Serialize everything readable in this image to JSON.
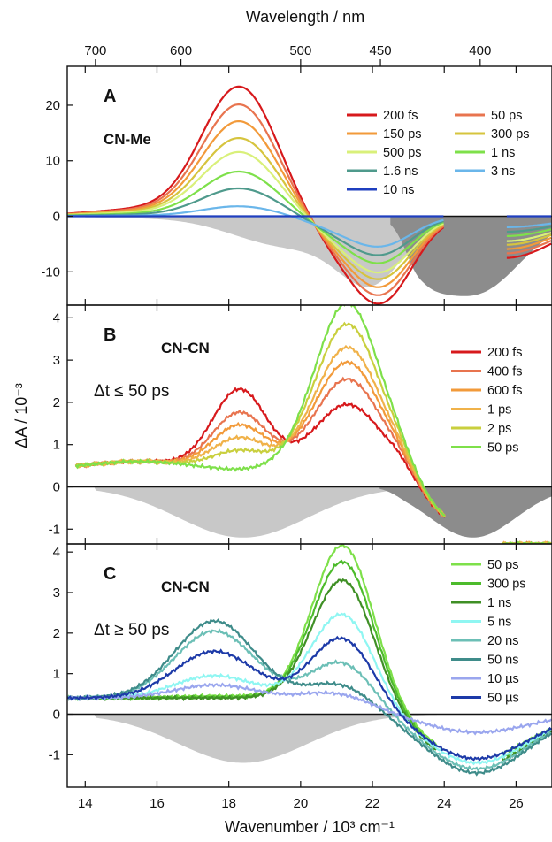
{
  "top_axis": {
    "title": "Wavelength / nm",
    "ticks": [
      700,
      600,
      500,
      450,
      400
    ]
  },
  "x_axis": {
    "title": "Wavenumber / 10³ cm⁻¹",
    "range": [
      13.5,
      27
    ],
    "ticks": [
      14,
      16,
      18,
      20,
      22,
      24,
      26
    ]
  },
  "y_axis_title": "ΔA / 10⁻³",
  "chart_data": [
    {
      "type": "line",
      "panel": "A",
      "label": "CN-Me",
      "ylim": [
        -16,
        27
      ],
      "yticks": [
        -10,
        0,
        10,
        20
      ],
      "legend_columns": 2,
      "series": [
        {
          "name": "200 fs",
          "color": "#d7191c",
          "peak": 23.2
        },
        {
          "name": "50 ps",
          "color": "#e8744f",
          "peak": 20
        },
        {
          "name": "150 ps",
          "color": "#f29a3a",
          "peak": 17
        },
        {
          "name": "300 ps",
          "color": "#d6c43e",
          "peak": 14
        },
        {
          "name": "500 ps",
          "color": "#d9f07a",
          "peak": 11.5
        },
        {
          "name": "1 ns",
          "color": "#7ee04a",
          "peak": 8
        },
        {
          "name": "1.6 ns",
          "color": "#4f9a8c",
          "peak": 5
        },
        {
          "name": "3 ns",
          "color": "#6ab6ea",
          "peak": 1.8
        },
        {
          "name": "10 ns",
          "color": "#1f3fbf",
          "peak": 0
        }
      ]
    },
    {
      "type": "line",
      "panel": "B",
      "label": "CN-CN",
      "condition": "Δt ≤ 50 ps",
      "ylim": [
        -1.35,
        4.3
      ],
      "yticks": [
        -1,
        0,
        1,
        2,
        3,
        4
      ],
      "series": [
        {
          "name": "200 fs",
          "color": "#d7191c",
          "p1": 2.35,
          "p2": 1.5
        },
        {
          "name": "400 fs",
          "color": "#e8744f",
          "p1": 1.8,
          "p2": 2.1
        },
        {
          "name": "600 fs",
          "color": "#f29a3a",
          "p1": 1.5,
          "p2": 2.5
        },
        {
          "name": "1 ps",
          "color": "#f0b24a",
          "p1": 1.2,
          "p2": 2.85
        },
        {
          "name": "2 ps",
          "color": "#c9cf3e",
          "p1": 0.9,
          "p2": 3.4
        },
        {
          "name": "50 ps",
          "color": "#7ee04a",
          "p1": 0.45,
          "p2": 3.9
        }
      ]
    },
    {
      "type": "line",
      "panel": "C",
      "label": "CN-CN",
      "condition": "Δt ≥ 50 ps",
      "ylim": [
        -1.8,
        4.2
      ],
      "yticks": [
        -1,
        0,
        1,
        2,
        3,
        4
      ],
      "series": [
        {
          "name": "50 ps",
          "color": "#7ee04a",
          "p1": 0.45,
          "p2": 3.9,
          "bl": -1.1
        },
        {
          "name": "300 ps",
          "color": "#4dbb2c",
          "p1": 0.42,
          "p2": 3.5,
          "bl": -1.2
        },
        {
          "name": "1 ns",
          "color": "#3f8f25",
          "p1": 0.4,
          "p2": 3.05,
          "bl": -1.3
        },
        {
          "name": "5 ns",
          "color": "#8ff6f2",
          "p1": 0.95,
          "p2": 2.2,
          "bl": -1.2
        },
        {
          "name": "20 ns",
          "color": "#6cbfb6",
          "p1": 2.05,
          "p2": 1.0,
          "bl": -1.35
        },
        {
          "name": "50 ns",
          "color": "#3f8c8a",
          "p1": 2.3,
          "p2": 0.45,
          "bl": -1.45
        },
        {
          "name": "10 µs",
          "color": "#9aa6ee",
          "p1": 0.72,
          "p2": 0.2,
          "bl": -0.45
        },
        {
          "name": "50 µs",
          "color": "#1d3aa8",
          "p1": 1.55,
          "p2": 1.6,
          "bl": -1.1
        }
      ]
    }
  ]
}
